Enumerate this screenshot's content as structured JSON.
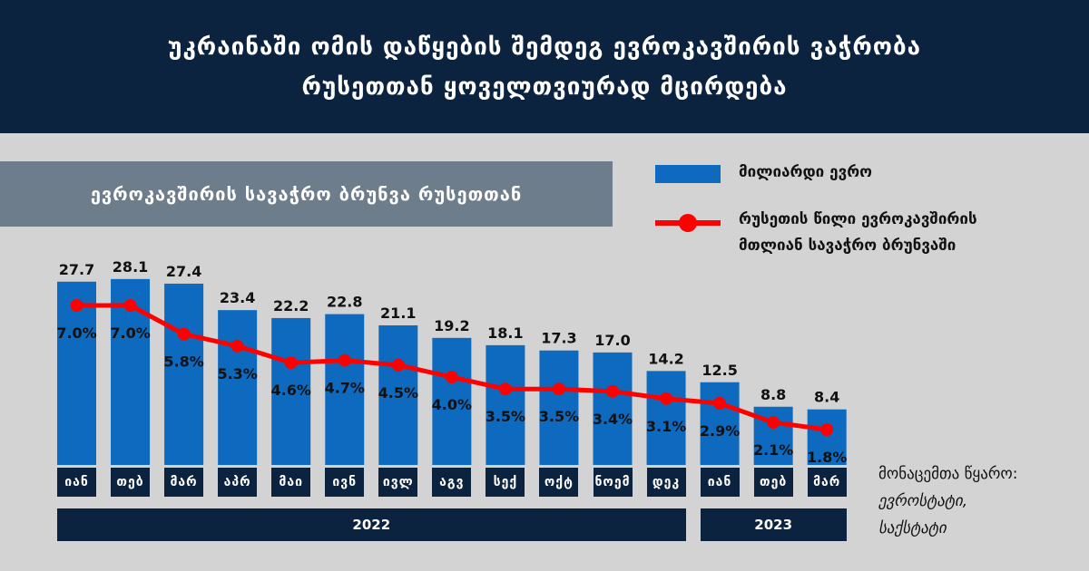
{
  "header": {
    "line1": "უკრაინაში ომის დაწყების შემდეგ ევროკავშირის ვაჭრობა",
    "line2": "რუსეთთან ყოველთვიურად მცირდება"
  },
  "subtitle": "ევროკავშირის სავაჭრო ბრუნვა რუსეთთან",
  "legend": {
    "bar_label": "მილიარდი ევრო",
    "line_label_1": "რუსეთის წილი ევროკავშირის",
    "line_label_2": "მთლიან სავაჭრო ბრუნვაში"
  },
  "source": {
    "label": "მონაცემთა წყარო:",
    "line1": "ევროსტატი,",
    "line2": "საქსტატი"
  },
  "years": [
    {
      "label": "2022",
      "span": [
        0,
        11
      ]
    },
    {
      "label": "2023",
      "span": [
        12,
        14
      ]
    }
  ],
  "colors": {
    "bar": "#0d6abf",
    "line": "#ff0000",
    "header_bg": "#0c2340",
    "subtitle_bg": "#6d7d8b",
    "background": "#d3d3d3"
  },
  "chart_data": {
    "type": "bar",
    "categories": [
      "იან",
      "თებ",
      "მარ",
      "აპრ",
      "მაი",
      "ივნ",
      "ივლ",
      "აგვ",
      "სექ",
      "ოქტ",
      "ნოემ",
      "დეკ",
      "იან",
      "თებ",
      "მარ"
    ],
    "series": [
      {
        "name": "მილიარდი ევრო",
        "type": "bar",
        "values": [
          27.7,
          28.1,
          27.4,
          23.4,
          22.2,
          22.8,
          21.1,
          19.2,
          18.1,
          17.3,
          17.0,
          14.2,
          12.5,
          8.8,
          8.4
        ],
        "labels": [
          "27.7",
          "28.1",
          "27.4",
          "23.4",
          "22.2",
          "22.8",
          "21.1",
          "19.2",
          "18.1",
          "17.3",
          "17.0",
          "14.2",
          "12.5",
          "8.8",
          "8.4"
        ]
      },
      {
        "name": "რუსეთის წილი ევროკავშირის მთლიან სავაჭრო ბრუნვაში",
        "type": "line",
        "values": [
          7.0,
          7.0,
          5.8,
          5.3,
          4.6,
          4.7,
          4.5,
          4.0,
          3.5,
          3.5,
          3.4,
          3.1,
          2.9,
          2.1,
          1.8
        ],
        "labels": [
          "7.0%",
          "7.0%",
          "5.8%",
          "5.3%",
          "4.6%",
          "4.7%",
          "4.5%",
          "4.0%",
          "3.5%",
          "3.5%",
          "3.4%",
          "3.1%",
          "2.9%",
          "2.1%",
          "1.8%"
        ]
      }
    ],
    "legend_position": "top-right",
    "grid": false
  }
}
